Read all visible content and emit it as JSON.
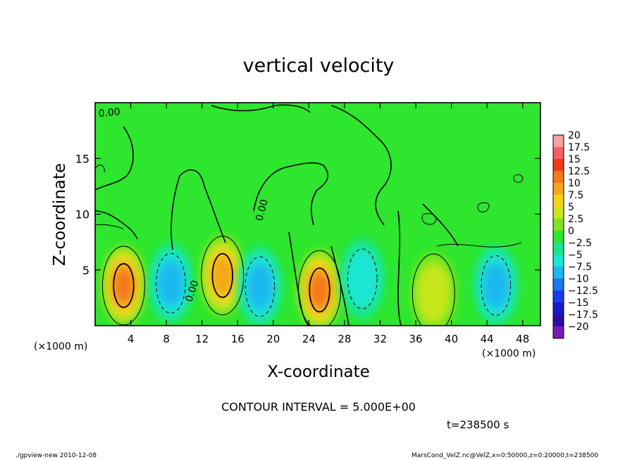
{
  "chart_data": {
    "type": "heatmap",
    "title": "vertical velocity",
    "xlabel": "X-coordinate",
    "ylabel": "Z-coordinate",
    "x_unit": "(×1000 m)",
    "y_unit": "(×1000 m)",
    "xlim": [
      0,
      50
    ],
    "ylim": [
      0,
      20
    ],
    "x_ticks": [
      4,
      8,
      12,
      16,
      20,
      24,
      28,
      32,
      36,
      40,
      44,
      48
    ],
    "y_ticks": [
      5,
      10,
      15
    ],
    "contour_interval": "CONTOUR INTERVAL = 5.000E+00",
    "time_label": "t=238500 s",
    "contour_label": "0.00",
    "colorbar": {
      "levels": [
        "20",
        "17.5",
        "15",
        "12.5",
        "10",
        "7.5",
        "5",
        "2.5",
        "0",
        "−2.5",
        "−5",
        "−7.5",
        "−10",
        "−12.5",
        "−15",
        "−17.5",
        "−20"
      ],
      "colors": [
        "#f9a0a0",
        "#f86060",
        "#f03a1a",
        "#f5781a",
        "#f5a718",
        "#f7d21a",
        "#c8e61a",
        "#7ee61a",
        "#2de62d",
        "#19e68c",
        "#1ae6d4",
        "#1ab8f0",
        "#1a78f0",
        "#1a3cf0",
        "#1a1ac8",
        "#2a10a0",
        "#7a18b8"
      ]
    },
    "features": [
      {
        "kind": "updraft",
        "x": 3.2,
        "z": 3.6,
        "value": 12.5
      },
      {
        "kind": "downdraft",
        "x": 8.5,
        "z": 3.8,
        "value": -7.5
      },
      {
        "kind": "updraft",
        "x": 14.3,
        "z": 4.5,
        "value": 10
      },
      {
        "kind": "downdraft",
        "x": 18.5,
        "z": 3.5,
        "value": -7.5
      },
      {
        "kind": "updraft",
        "x": 25.2,
        "z": 3.2,
        "value": 12.5
      },
      {
        "kind": "downdraft",
        "x": 30.0,
        "z": 4.2,
        "value": -5
      },
      {
        "kind": "updraft",
        "x": 38.0,
        "z": 2.9,
        "value": 5
      },
      {
        "kind": "downdraft",
        "x": 45.0,
        "z": 3.6,
        "value": -7.5
      }
    ]
  },
  "footer": {
    "left": "./gpview-new   2010-12-08",
    "right": "MarsCond_VelZ.nc@VelZ,x=0:50000,z=0:20000,t=238500"
  }
}
